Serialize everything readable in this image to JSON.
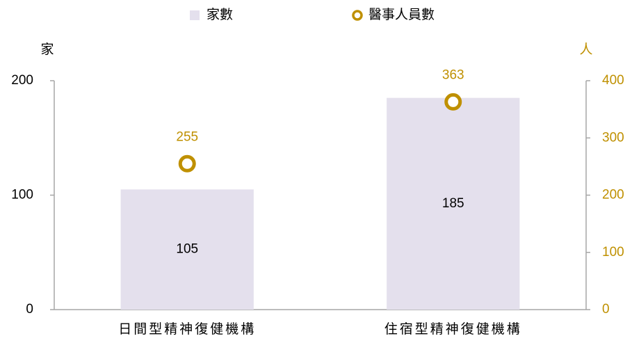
{
  "chart_data": {
    "type": "combo",
    "categories": [
      "日間型精神復健機構",
      "住宿型精神復健機構"
    ],
    "series": [
      {
        "name": "家數",
        "type": "bar",
        "color": "#e4e0ed",
        "values": [
          105,
          185
        ]
      },
      {
        "name": "醫事人員數",
        "type": "scatter",
        "axis": "y2",
        "color": "#bf9000",
        "values": [
          255,
          363
        ]
      }
    ],
    "ylabel": "家",
    "y2label": "人",
    "ylim": [
      0,
      200
    ],
    "yticks": [
      0,
      100,
      200
    ],
    "y2lim": [
      0,
      400
    ],
    "y2ticks": [
      0,
      100,
      200,
      300,
      400
    ]
  }
}
